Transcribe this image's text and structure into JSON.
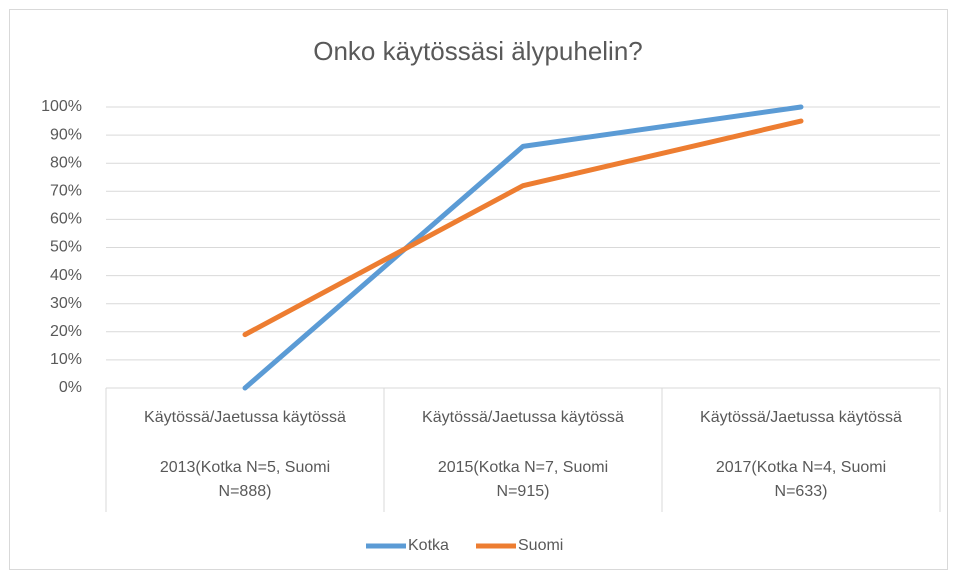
{
  "chart_data": {
    "type": "line",
    "title": "Onko käytössäsi älypuhelin?",
    "categories": [
      [
        "Käytössä/Jaetussa käytössä",
        "2013(Kotka N=5, Suomi N=888)"
      ],
      [
        "Käytössä/Jaetussa käytössä",
        "2015(Kotka N=7, Suomi N=915)"
      ],
      [
        "Käytössä/Jaetussa käytössä",
        "2017(Kotka N=4, Suomi N=633)"
      ]
    ],
    "series": [
      {
        "name": "Kotka",
        "color": "#5b9bd5",
        "values": [
          0,
          86,
          100
        ]
      },
      {
        "name": "Suomi",
        "color": "#ed7d31",
        "values": [
          19,
          72,
          95
        ]
      }
    ],
    "ylim": [
      0,
      100
    ],
    "yticks": [
      {
        "value": 0,
        "label": "0%"
      },
      {
        "value": 10,
        "label": "10%"
      },
      {
        "value": 20,
        "label": "20%"
      },
      {
        "value": 30,
        "label": "30%"
      },
      {
        "value": 40,
        "label": "40%"
      },
      {
        "value": 50,
        "label": "50%"
      },
      {
        "value": 60,
        "label": "60%"
      },
      {
        "value": 70,
        "label": "70%"
      },
      {
        "value": 80,
        "label": "80%"
      },
      {
        "value": 90,
        "label": "90%"
      },
      {
        "value": 100,
        "label": "100%"
      }
    ],
    "grid": true,
    "legend": "bottom"
  }
}
